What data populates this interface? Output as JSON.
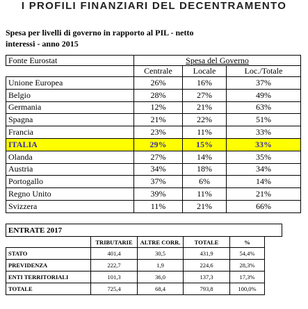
{
  "title": "I PROFILI FINANZIARI DEL DECENTRAMENTO",
  "subtitle": [
    "Spesa per livelli di governo in rapporto al PIL - netto",
    "interessi - anno 2015"
  ],
  "table1": {
    "source": "Fonte Eurostat",
    "group_header": "Spesa del Governo",
    "columns": [
      "Centrale",
      "Locale",
      "Loc./Totale"
    ],
    "rows": [
      [
        "Unione Europea",
        "26%",
        "16%",
        "37%"
      ],
      [
        "Belgio",
        "28%",
        "27%",
        "49%"
      ],
      [
        "Germania",
        "12%",
        "21%",
        "63%"
      ],
      [
        "Spagna",
        "21%",
        "22%",
        "51%"
      ],
      [
        "Francia",
        "23%",
        "11%",
        "33%"
      ],
      [
        "ITALIA",
        "29%",
        "15%",
        "33%"
      ],
      [
        "Olanda",
        "27%",
        "14%",
        "35%"
      ],
      [
        "Austria",
        "34%",
        "18%",
        "34%"
      ],
      [
        "Portogallo",
        "37%",
        "6%",
        "14%"
      ],
      [
        "Regno Unito",
        "39%",
        "11%",
        "21%"
      ],
      [
        "Svizzera",
        "11%",
        "21%",
        "66%"
      ]
    ],
    "highlight": {
      "row": 5,
      "color": "#ffff00",
      "text_color": "#3a2fa0"
    }
  },
  "table2": {
    "title": "ENTRATE 2017",
    "columns": [
      "TRIBUTARIE",
      "ALTRE CORR.",
      "TOTALE",
      "%"
    ],
    "rows": [
      [
        "STATO",
        "401,4",
        "30,5",
        "431,9",
        "54,4%"
      ],
      [
        "PREVIDENZA",
        "222,7",
        "1,9",
        "224,6",
        "28,3%"
      ],
      [
        "ENTI TERRITORIALI",
        "101,3",
        "36,0",
        "137,3",
        "17,3%"
      ],
      [
        "TOTALE",
        "725,4",
        "68,4",
        "793,8",
        "100,0%"
      ]
    ]
  }
}
